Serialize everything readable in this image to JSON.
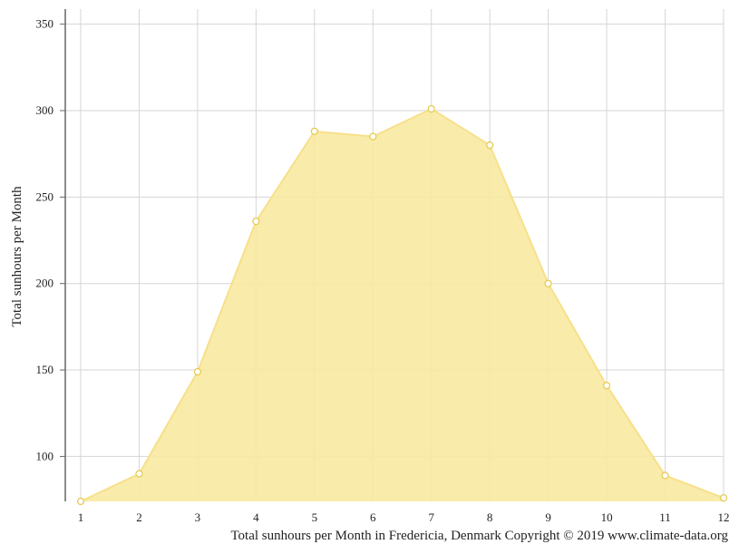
{
  "chart_data": {
    "type": "area",
    "x": [
      1,
      2,
      3,
      4,
      5,
      6,
      7,
      8,
      9,
      10,
      11,
      12
    ],
    "series": [
      {
        "values": [
          74,
          90,
          149,
          236,
          288,
          285,
          301,
          280,
          200,
          141,
          89,
          76
        ]
      }
    ],
    "ylabel": "Total sunhours per Month",
    "xlabel": "",
    "ylim": [
      74,
      354
    ],
    "yticks": [
      100,
      150,
      200,
      250,
      300,
      350
    ],
    "xticks": [
      1,
      2,
      3,
      4,
      5,
      6,
      7,
      8,
      9,
      10,
      11,
      12
    ],
    "grid": true,
    "colors": {
      "fill": "#f8e9a1",
      "line": "#f7e08a",
      "marker_fill": "#ffffff",
      "marker_stroke": "#e6c84a",
      "grid": "#d6d6d6",
      "axis": "#666666"
    }
  },
  "caption": "Total sunhours per Month in Fredericia, Denmark Copyright © 2019 www.climate-data.org"
}
